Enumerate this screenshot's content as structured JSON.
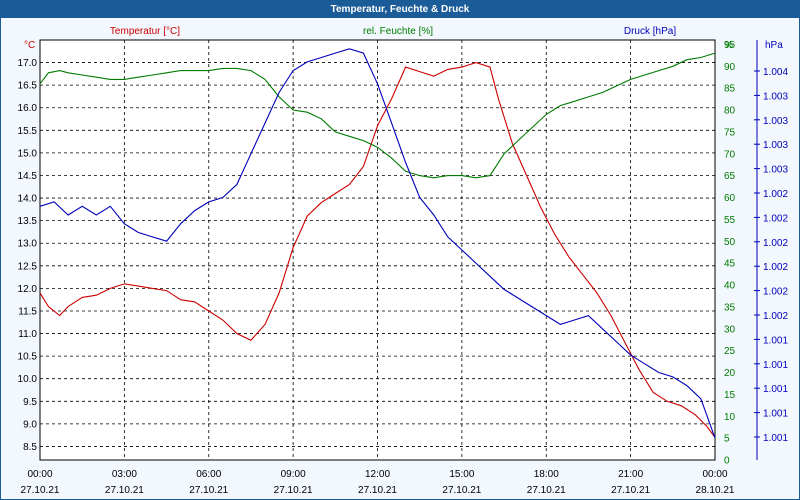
{
  "window": {
    "title": "Temperatur, Feuchte & Druck"
  },
  "colors": {
    "temperature": "#cc0000",
    "humidity": "#007a00",
    "pressure": "#0000bb",
    "grid": "#000000",
    "title_bar": "#1b5c98"
  },
  "chart_data": {
    "type": "line",
    "title": "Temperatur, Feuchte & Druck",
    "grid": true,
    "axes": {
      "temperature": {
        "unit": "°C",
        "title": "Temperatur [°C]",
        "range": [
          8.2,
          17.5
        ],
        "ticks": [
          "17.0",
          "16.5",
          "16.0",
          "15.5",
          "15.0",
          "14.5",
          "14.0",
          "13.5",
          "13.0",
          "12.5",
          "12.0",
          "11.5",
          "11.0",
          "10.5",
          "10.0",
          "9.5",
          "9.0",
          "8.5"
        ]
      },
      "humidity": {
        "unit": "%",
        "title": "rel. Feuchte [%]",
        "range": [
          0,
          96
        ],
        "ticks": [
          "95",
          "90",
          "85",
          "80",
          "75",
          "70",
          "65",
          "60",
          "55",
          "50",
          "45",
          "40",
          "35",
          "30",
          "25",
          "20",
          "15",
          "10",
          "5",
          "0"
        ]
      },
      "pressure": {
        "unit": "hPa",
        "title": "Druck [hPa]",
        "range": [
          0,
          96
        ],
        "ticks": [
          "1.004",
          "1.003",
          "1.003",
          "1.003",
          "1.003",
          "1.002",
          "1.002",
          "1.002",
          "1.002",
          "1.002",
          "1.002",
          "1.001",
          "1.001",
          "1.001",
          "1.001",
          "1.001"
        ]
      }
    },
    "x_axis": {
      "range_hours": [
        0,
        24
      ],
      "ticks": [
        {
          "time": "00:00",
          "date": "27.10.21"
        },
        {
          "time": "03:00",
          "date": "27.10.21"
        },
        {
          "time": "06:00",
          "date": "27.10.21"
        },
        {
          "time": "09:00",
          "date": "27.10.21"
        },
        {
          "time": "12:00",
          "date": "27.10.21"
        },
        {
          "time": "15:00",
          "date": "27.10.21"
        },
        {
          "time": "18:00",
          "date": "27.10.21"
        },
        {
          "time": "21:00",
          "date": "27.10.21"
        },
        {
          "time": "00:00",
          "date": "28.10.21"
        }
      ]
    },
    "series": [
      {
        "name": "Temperatur [°C]",
        "axis": "temperature",
        "points": [
          [
            0,
            11.9
          ],
          [
            0.3,
            11.6
          ],
          [
            0.7,
            11.4
          ],
          [
            1.0,
            11.6
          ],
          [
            1.5,
            11.8
          ],
          [
            2.0,
            11.85
          ],
          [
            2.5,
            12.0
          ],
          [
            3.0,
            12.1
          ],
          [
            3.5,
            12.05
          ],
          [
            4.0,
            12.0
          ],
          [
            4.5,
            11.95
          ],
          [
            5.0,
            11.75
          ],
          [
            5.5,
            11.7
          ],
          [
            6.0,
            11.5
          ],
          [
            6.5,
            11.3
          ],
          [
            7.0,
            11.0
          ],
          [
            7.5,
            10.85
          ],
          [
            8.0,
            11.2
          ],
          [
            8.5,
            11.9
          ],
          [
            9.0,
            12.9
          ],
          [
            9.5,
            13.6
          ],
          [
            10.0,
            13.9
          ],
          [
            10.5,
            14.1
          ],
          [
            11.0,
            14.3
          ],
          [
            11.5,
            14.7
          ],
          [
            12.0,
            15.6
          ],
          [
            12.5,
            16.2
          ],
          [
            13.0,
            16.9
          ],
          [
            13.5,
            16.8
          ],
          [
            14.0,
            16.7
          ],
          [
            14.5,
            16.85
          ],
          [
            15.0,
            16.9
          ],
          [
            15.5,
            17.0
          ],
          [
            16.0,
            16.9
          ],
          [
            16.3,
            16.2
          ],
          [
            16.8,
            15.2
          ],
          [
            17.3,
            14.5
          ],
          [
            17.8,
            13.8
          ],
          [
            18.3,
            13.2
          ],
          [
            18.8,
            12.7
          ],
          [
            19.3,
            12.3
          ],
          [
            19.8,
            11.9
          ],
          [
            20.3,
            11.4
          ],
          [
            20.8,
            10.8
          ],
          [
            21.3,
            10.2
          ],
          [
            21.8,
            9.7
          ],
          [
            22.3,
            9.5
          ],
          [
            22.8,
            9.4
          ],
          [
            23.3,
            9.2
          ],
          [
            23.7,
            8.95
          ],
          [
            24.0,
            8.7
          ]
        ]
      },
      {
        "name": "rel. Feuchte [%]",
        "axis": "humidity",
        "points": [
          [
            0,
            86
          ],
          [
            0.3,
            88.5
          ],
          [
            0.7,
            89
          ],
          [
            1.0,
            88.5
          ],
          [
            1.5,
            88
          ],
          [
            2.0,
            87.5
          ],
          [
            2.5,
            87
          ],
          [
            3.0,
            87
          ],
          [
            3.5,
            87.5
          ],
          [
            4.0,
            88
          ],
          [
            4.5,
            88.5
          ],
          [
            5.0,
            89
          ],
          [
            5.5,
            89
          ],
          [
            6.0,
            89
          ],
          [
            6.5,
            89.5
          ],
          [
            7.0,
            89.5
          ],
          [
            7.5,
            89
          ],
          [
            8.0,
            87
          ],
          [
            8.5,
            83
          ],
          [
            9.0,
            80
          ],
          [
            9.5,
            79.5
          ],
          [
            10.0,
            78
          ],
          [
            10.5,
            75
          ],
          [
            11.0,
            74
          ],
          [
            11.5,
            73
          ],
          [
            12.0,
            71.5
          ],
          [
            12.5,
            69
          ],
          [
            13.0,
            66
          ],
          [
            13.5,
            65
          ],
          [
            14.0,
            64.5
          ],
          [
            14.5,
            65
          ],
          [
            15.0,
            65
          ],
          [
            15.5,
            64.5
          ],
          [
            16.0,
            65
          ],
          [
            16.5,
            70
          ],
          [
            17.0,
            73
          ],
          [
            17.5,
            76
          ],
          [
            18.0,
            79
          ],
          [
            18.5,
            81
          ],
          [
            19.0,
            82
          ],
          [
            19.5,
            83
          ],
          [
            20.0,
            84
          ],
          [
            20.5,
            85.5
          ],
          [
            21.0,
            87
          ],
          [
            21.5,
            88
          ],
          [
            22.0,
            89
          ],
          [
            22.5,
            90
          ],
          [
            23.0,
            91.5
          ],
          [
            23.5,
            92
          ],
          [
            24.0,
            93
          ]
        ]
      },
      {
        "name": "Druck [hPa]",
        "axis": "pressure",
        "points": [
          [
            0,
            58
          ],
          [
            0.5,
            59
          ],
          [
            1.0,
            56
          ],
          [
            1.5,
            58
          ],
          [
            2.0,
            56
          ],
          [
            2.5,
            58
          ],
          [
            3.0,
            54
          ],
          [
            3.5,
            52
          ],
          [
            4.0,
            51
          ],
          [
            4.5,
            50
          ],
          [
            5.0,
            54
          ],
          [
            5.5,
            57
          ],
          [
            6.0,
            59
          ],
          [
            6.5,
            60
          ],
          [
            7.0,
            63
          ],
          [
            7.5,
            70
          ],
          [
            8.0,
            77
          ],
          [
            8.5,
            84
          ],
          [
            9.0,
            89
          ],
          [
            9.5,
            91
          ],
          [
            10.0,
            92
          ],
          [
            10.5,
            93
          ],
          [
            11.0,
            94
          ],
          [
            11.5,
            93
          ],
          [
            12.0,
            86
          ],
          [
            12.5,
            77
          ],
          [
            13.0,
            68
          ],
          [
            13.5,
            60
          ],
          [
            14.0,
            56
          ],
          [
            14.5,
            51
          ],
          [
            15.0,
            48
          ],
          [
            15.5,
            45
          ],
          [
            16.0,
            42
          ],
          [
            16.5,
            39
          ],
          [
            17.0,
            37
          ],
          [
            17.5,
            35
          ],
          [
            18.0,
            33
          ],
          [
            18.5,
            31
          ],
          [
            19.0,
            32
          ],
          [
            19.5,
            33
          ],
          [
            20.0,
            30
          ],
          [
            20.5,
            27
          ],
          [
            21.0,
            24
          ],
          [
            21.5,
            22
          ],
          [
            22.0,
            20
          ],
          [
            22.5,
            19
          ],
          [
            23.0,
            17
          ],
          [
            23.5,
            14
          ],
          [
            24.0,
            5
          ]
        ]
      }
    ]
  }
}
